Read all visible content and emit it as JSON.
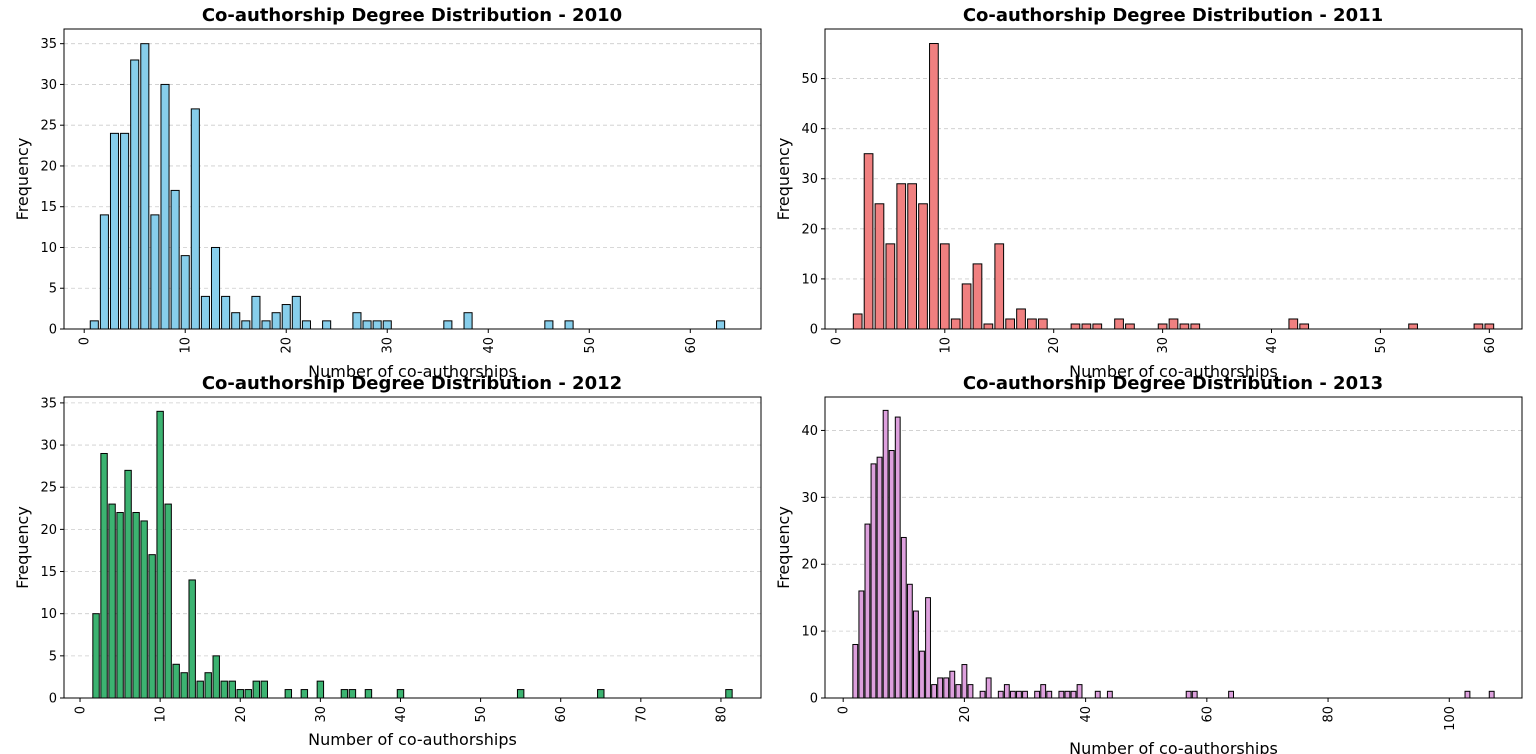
{
  "chart_data": [
    {
      "type": "bar",
      "title": "Co-authorship Degree Distribution - 2010",
      "xlabel": "Number of co-authorships",
      "ylabel": "Frequency",
      "color": "#87ceeb",
      "edge_color": "#000000",
      "xlim": [
        -2,
        67
      ],
      "ylim": [
        0,
        36.8
      ],
      "xticks": [
        0,
        10,
        20,
        30,
        40,
        50,
        60
      ],
      "yticks": [
        0,
        5,
        10,
        15,
        20,
        25,
        30,
        35
      ],
      "grid": "y dashed",
      "x": [
        1,
        2,
        3,
        4,
        5,
        6,
        7,
        8,
        9,
        10,
        11,
        12,
        13,
        14,
        15,
        16,
        17,
        18,
        19,
        20,
        21,
        22,
        24,
        27,
        28,
        29,
        30,
        36,
        38,
        46,
        48,
        63
      ],
      "values": [
        1,
        14,
        24,
        24,
        33,
        35,
        14,
        30,
        17,
        9,
        27,
        4,
        10,
        4,
        2,
        1,
        4,
        1,
        2,
        3,
        4,
        1,
        1,
        2,
        1,
        1,
        1,
        1,
        2,
        1,
        1,
        1
      ]
    },
    {
      "type": "bar",
      "title": "Co-authorship Degree Distribution - 2011",
      "xlabel": "Number of co-authorships",
      "ylabel": "Frequency",
      "color": "#f08080",
      "edge_color": "#000000",
      "xlim": [
        -1,
        63
      ],
      "ylim": [
        0,
        59.9
      ],
      "xticks": [
        0,
        10,
        20,
        30,
        40,
        50,
        60
      ],
      "yticks": [
        0,
        10,
        20,
        30,
        40,
        50
      ],
      "grid": "y dashed",
      "x": [
        2,
        3,
        4,
        5,
        6,
        7,
        8,
        9,
        10,
        11,
        12,
        13,
        14,
        15,
        16,
        17,
        18,
        19,
        22,
        23,
        24,
        26,
        27,
        30,
        31,
        32,
        33,
        42,
        43,
        53,
        59,
        60
      ],
      "values": [
        3,
        35,
        25,
        17,
        29,
        29,
        25,
        57,
        17,
        2,
        9,
        13,
        1,
        17,
        2,
        4,
        2,
        2,
        1,
        1,
        1,
        2,
        1,
        1,
        2,
        1,
        1,
        2,
        1,
        1,
        1,
        1
      ]
    },
    {
      "type": "bar",
      "title": "Co-authorship Degree Distribution - 2012",
      "xlabel": "Number of co-authorships",
      "ylabel": "Frequency",
      "color": "#3cb371",
      "edge_color": "#000000",
      "xlim": [
        -2,
        85
      ],
      "ylim": [
        0,
        35.7
      ],
      "xticks": [
        0,
        10,
        20,
        30,
        40,
        50,
        60,
        70,
        80
      ],
      "yticks": [
        0,
        5,
        10,
        15,
        20,
        25,
        30,
        35
      ],
      "grid": "y dashed",
      "x": [
        2,
        3,
        4,
        5,
        6,
        7,
        8,
        9,
        10,
        11,
        12,
        13,
        14,
        15,
        16,
        17,
        18,
        19,
        20,
        21,
        22,
        23,
        26,
        28,
        30,
        33,
        34,
        36,
        40,
        55,
        65,
        81
      ],
      "values": [
        10,
        29,
        23,
        22,
        27,
        22,
        21,
        17,
        34,
        23,
        4,
        3,
        14,
        2,
        3,
        5,
        2,
        2,
        1,
        1,
        2,
        2,
        1,
        1,
        2,
        1,
        1,
        1,
        1,
        1,
        1,
        1
      ]
    },
    {
      "type": "bar",
      "title": "Co-authorship Degree Distribution - 2013",
      "xlabel": "Number of co-authorships",
      "ylabel": "Frequency",
      "color": "#dda0dd",
      "edge_color": "#000000",
      "xlim": [
        -3,
        112
      ],
      "ylim": [
        0,
        45
      ],
      "xticks": [
        0,
        20,
        40,
        60,
        80,
        100
      ],
      "yticks": [
        0,
        10,
        20,
        30,
        40
      ],
      "grid": "y dashed",
      "x": [
        2,
        3,
        4,
        5,
        6,
        7,
        8,
        9,
        10,
        11,
        12,
        13,
        14,
        15,
        16,
        17,
        18,
        19,
        20,
        21,
        23,
        24,
        26,
        27,
        28,
        29,
        30,
        32,
        33,
        34,
        36,
        37,
        38,
        39,
        42,
        44,
        57,
        58,
        64,
        103,
        107
      ],
      "values": [
        8,
        16,
        26,
        35,
        36,
        43,
        37,
        42,
        24,
        17,
        13,
        7,
        15,
        2,
        3,
        3,
        4,
        2,
        5,
        2,
        1,
        3,
        1,
        2,
        1,
        1,
        1,
        1,
        2,
        1,
        1,
        1,
        1,
        2,
        1,
        1,
        1,
        1,
        1,
        1,
        1
      ]
    }
  ]
}
